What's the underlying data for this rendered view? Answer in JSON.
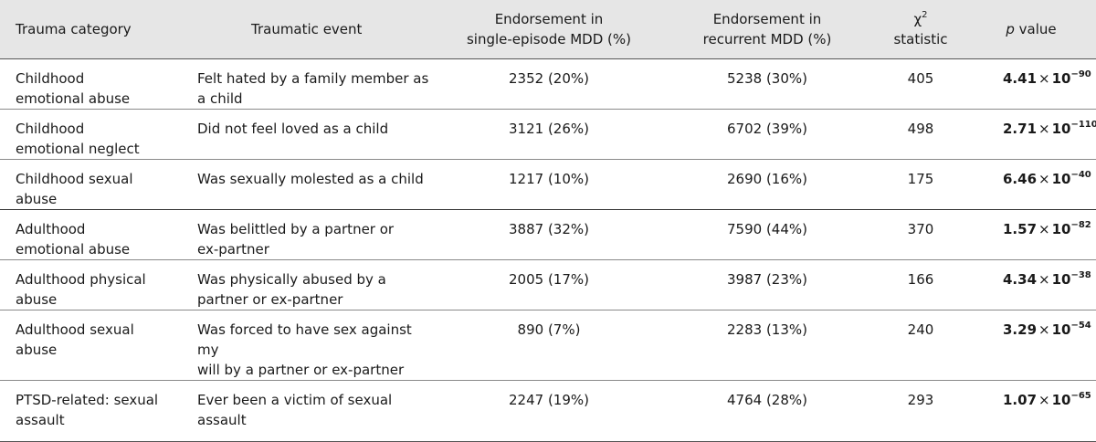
{
  "headers": {
    "trauma_category": "Trauma category",
    "traumatic_event": "Traumatic event",
    "single_line1": "Endorsement in",
    "single_line2": "single-episode MDD (%)",
    "recurrent_line1": "Endorsement in",
    "recurrent_line2": "recurrent MDD (%)",
    "chi_symbol": "χ",
    "chi_sup": "2",
    "chi_line2": "statistic",
    "p_italic": "p",
    "p_rest": " value"
  },
  "rows": [
    {
      "category_line1": "Childhood",
      "category_line2": "emotional abuse",
      "event_line1": "Felt hated by a family member as",
      "event_line2": "a child",
      "single": "2352 (20%)",
      "recurrent": "5238 (30%)",
      "chi": "405",
      "p_base": "4.41",
      "p_times": "×",
      "p_ten": "10",
      "p_exp": "−90"
    },
    {
      "category_line1": "Childhood",
      "category_line2": "emotional neglect",
      "event_line1": "Did not feel loved as a child",
      "event_line2": "",
      "single": "3121 (26%)",
      "recurrent": "6702 (39%)",
      "chi": "498",
      "p_base": "2.71",
      "p_times": "×",
      "p_ten": "10",
      "p_exp": "−110"
    },
    {
      "category_line1": "Childhood sexual",
      "category_line2": "abuse",
      "event_line1": "Was sexually molested as a child",
      "event_line2": "",
      "single": "1217 (10%)",
      "recurrent": "2690 (16%)",
      "chi": "175",
      "p_base": "6.46",
      "p_times": "×",
      "p_ten": "10",
      "p_exp": "−40"
    },
    {
      "category_line1": "Adulthood",
      "category_line2": "emotional abuse",
      "event_line1": "Was belittled by a partner or",
      "event_line2": "ex-partner",
      "single": "3887 (32%)",
      "recurrent": "7590 (44%)",
      "chi": "370",
      "p_base": "1.57",
      "p_times": "×",
      "p_ten": "10",
      "p_exp": "−82"
    },
    {
      "category_line1": "Adulthood physical",
      "category_line2": "abuse",
      "event_line1": "Was physically abused by a",
      "event_line2": "partner or ex-partner",
      "single": "2005 (17%)",
      "recurrent": "3987 (23%)",
      "chi": "166",
      "p_base": "4.34",
      "p_times": "×",
      "p_ten": "10",
      "p_exp": "−38"
    },
    {
      "category_line1": "Adulthood sexual",
      "category_line2": "abuse",
      "event_line1": "Was forced to have sex against my",
      "event_line2": "will by a partner or ex-partner",
      "single": "890 (7%)",
      "recurrent": "2283 (13%)",
      "chi": "240",
      "p_base": "3.29",
      "p_times": "×",
      "p_ten": "10",
      "p_exp": "−54"
    },
    {
      "category_line1": "PTSD-related: sexual",
      "category_line2": "assault",
      "event_line1": "Ever been a victim of sexual",
      "event_line2": "assault",
      "single": "2247 (19%)",
      "recurrent": "4764 (28%)",
      "chi": "293",
      "p_base": "1.07",
      "p_times": "×",
      "p_ten": "10",
      "p_exp": "−65"
    }
  ]
}
